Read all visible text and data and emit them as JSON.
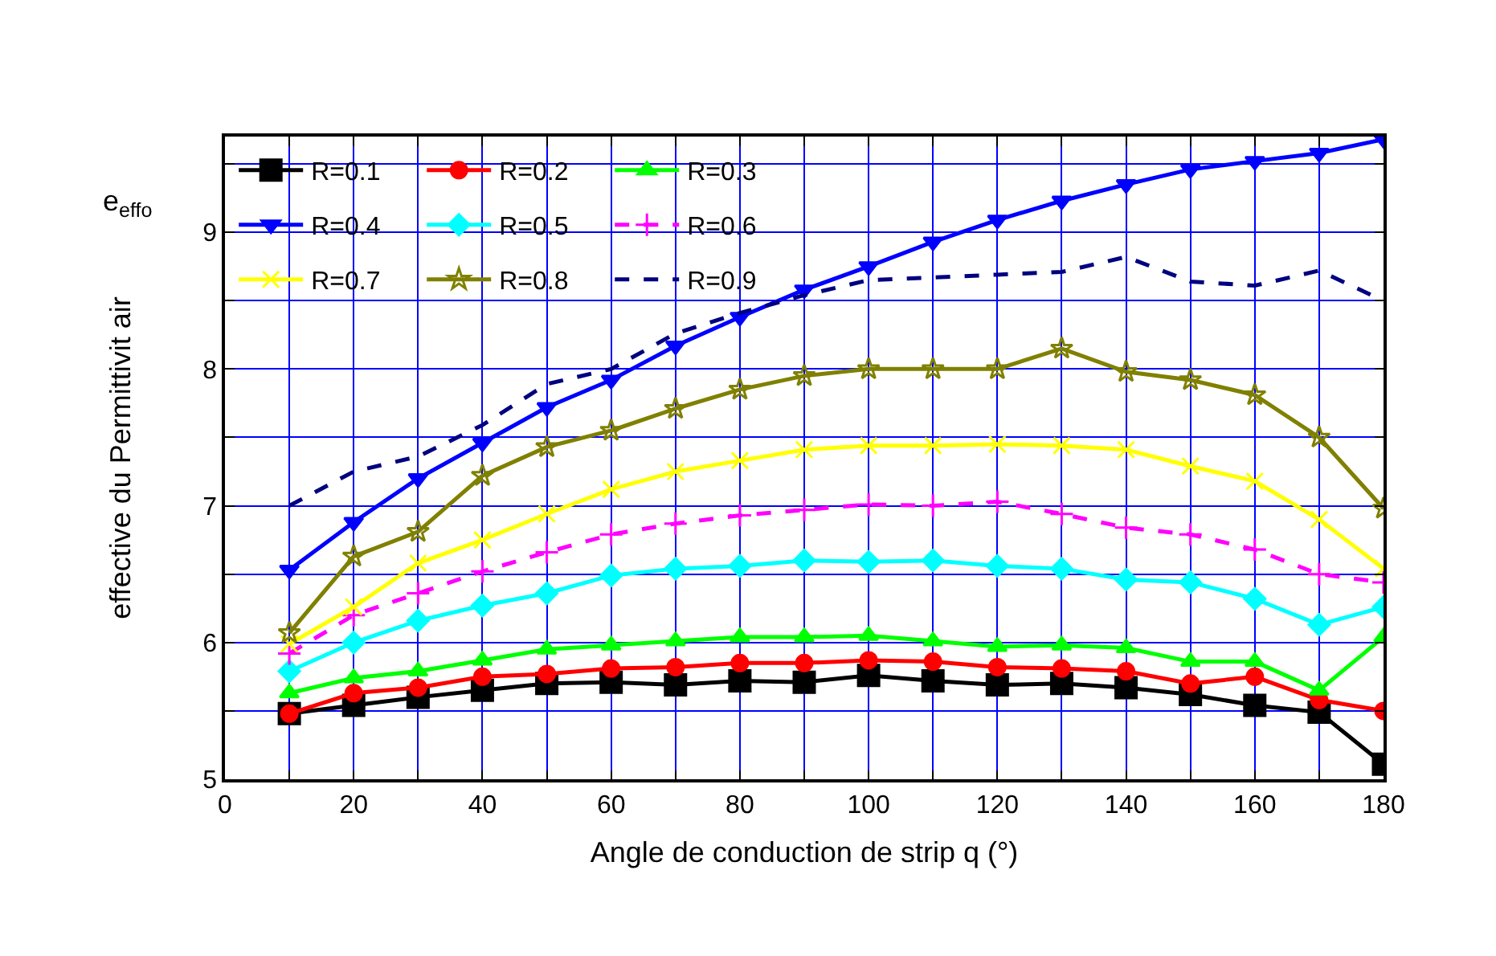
{
  "chart_data": {
    "type": "line",
    "xlabel": "Angle de conduction de strip q (°)",
    "ylabel": "effective du Permittivit air",
    "annotations": [
      "e$_{effo}$"
    ],
    "x": [
      10,
      20,
      30,
      40,
      50,
      60,
      70,
      80,
      90,
      100,
      110,
      120,
      130,
      140,
      150,
      160,
      170,
      180
    ],
    "xlim": [
      0,
      180
    ],
    "ylim": [
      5,
      9.7
    ],
    "xticks": [
      0,
      {
        "value": 10,
        "label": null
      },
      20,
      {
        "value": 30,
        "label": null
      },
      40,
      {
        "value": 50,
        "label": null
      },
      60,
      {
        "value": 70,
        "label": null
      },
      80,
      {
        "value": 90,
        "label": null
      },
      100,
      {
        "value": 110,
        "label": null
      },
      120,
      {
        "value": 130,
        "label": null
      },
      140,
      {
        "value": 150,
        "label": null
      },
      160,
      {
        "value": 170,
        "label": null
      },
      180
    ],
    "yticks": [
      5,
      {
        "value": 5.5,
        "label": null
      },
      6,
      {
        "value": 6.5,
        "label": null
      },
      7,
      {
        "value": 7.5,
        "label": null
      },
      8,
      {
        "value": 8.5,
        "label": null
      },
      9,
      {
        "value": 9.5,
        "label": null
      }
    ],
    "grid": true,
    "legend": "top left",
    "series": [
      {
        "name": "R=0.1",
        "color": "#000000",
        "marker": "square",
        "line_style": "solid",
        "values": [
          5.48,
          5.54,
          5.6,
          5.65,
          5.7,
          5.71,
          5.69,
          5.72,
          5.71,
          5.76,
          5.72,
          5.69,
          5.7,
          5.67,
          5.62,
          5.54,
          5.49,
          5.11
        ]
      },
      {
        "name": "R=0.2",
        "color": "#ff0000",
        "marker": "circle",
        "line_style": "solid",
        "values": [
          5.48,
          5.63,
          5.67,
          5.75,
          5.77,
          5.81,
          5.82,
          5.85,
          5.85,
          5.87,
          5.86,
          5.82,
          5.81,
          5.79,
          5.7,
          5.75,
          5.58,
          5.5
        ]
      },
      {
        "name": "R=0.3",
        "color": "#00ff00",
        "marker": "triangle",
        "line_style": "solid",
        "values": [
          5.63,
          5.74,
          5.79,
          5.87,
          5.95,
          5.98,
          6.01,
          6.04,
          6.04,
          6.05,
          6.01,
          5.97,
          5.98,
          5.96,
          5.86,
          5.86,
          5.65,
          6.04
        ]
      },
      {
        "name": "R=0.4",
        "color": "#0000ff",
        "marker": "triangle-down",
        "line_style": "solid",
        "values": [
          6.53,
          6.88,
          7.2,
          7.46,
          7.72,
          7.92,
          8.17,
          8.38,
          8.58,
          8.75,
          8.93,
          9.09,
          9.23,
          9.35,
          9.46,
          9.52,
          9.58,
          9.68
        ]
      },
      {
        "name": "R=0.5",
        "color": "#00ffff",
        "marker": "diamond",
        "line_style": "solid",
        "values": [
          5.79,
          6.0,
          6.16,
          6.27,
          6.36,
          6.49,
          6.54,
          6.56,
          6.6,
          6.59,
          6.6,
          6.56,
          6.54,
          6.46,
          6.44,
          6.32,
          6.13,
          6.26
        ]
      },
      {
        "name": "R=0.6",
        "color": "#ff00ff",
        "marker": "cross",
        "line_style": "dashed",
        "values": [
          5.92,
          6.2,
          6.36,
          6.52,
          6.66,
          6.79,
          6.87,
          6.93,
          6.97,
          7.01,
          7.0,
          7.03,
          6.94,
          6.84,
          6.79,
          6.68,
          6.5,
          6.44
        ]
      },
      {
        "name": "R=0.7",
        "color": "#ffff00",
        "marker": "x",
        "line_style": "solid",
        "values": [
          5.99,
          6.26,
          6.58,
          6.75,
          6.94,
          7.12,
          7.25,
          7.33,
          7.41,
          7.44,
          7.44,
          7.45,
          7.44,
          7.41,
          7.29,
          7.18,
          6.9,
          6.54
        ]
      },
      {
        "name": "R=0.8",
        "color": "#808000",
        "marker": "star",
        "line_style": "solid",
        "values": [
          6.07,
          6.63,
          6.81,
          7.22,
          7.43,
          7.55,
          7.71,
          7.85,
          7.95,
          8.0,
          8.0,
          8.0,
          8.15,
          7.98,
          7.92,
          7.81,
          7.5,
          6.98
        ]
      },
      {
        "name": "R=0.9",
        "color": "#000080",
        "marker": "none",
        "line_style": "dashed",
        "values": [
          7.0,
          7.25,
          7.36,
          7.59,
          7.89,
          8.0,
          8.26,
          8.41,
          8.54,
          8.65,
          8.67,
          8.69,
          8.71,
          8.82,
          8.64,
          8.61,
          8.72,
          8.5
        ]
      }
    ]
  }
}
